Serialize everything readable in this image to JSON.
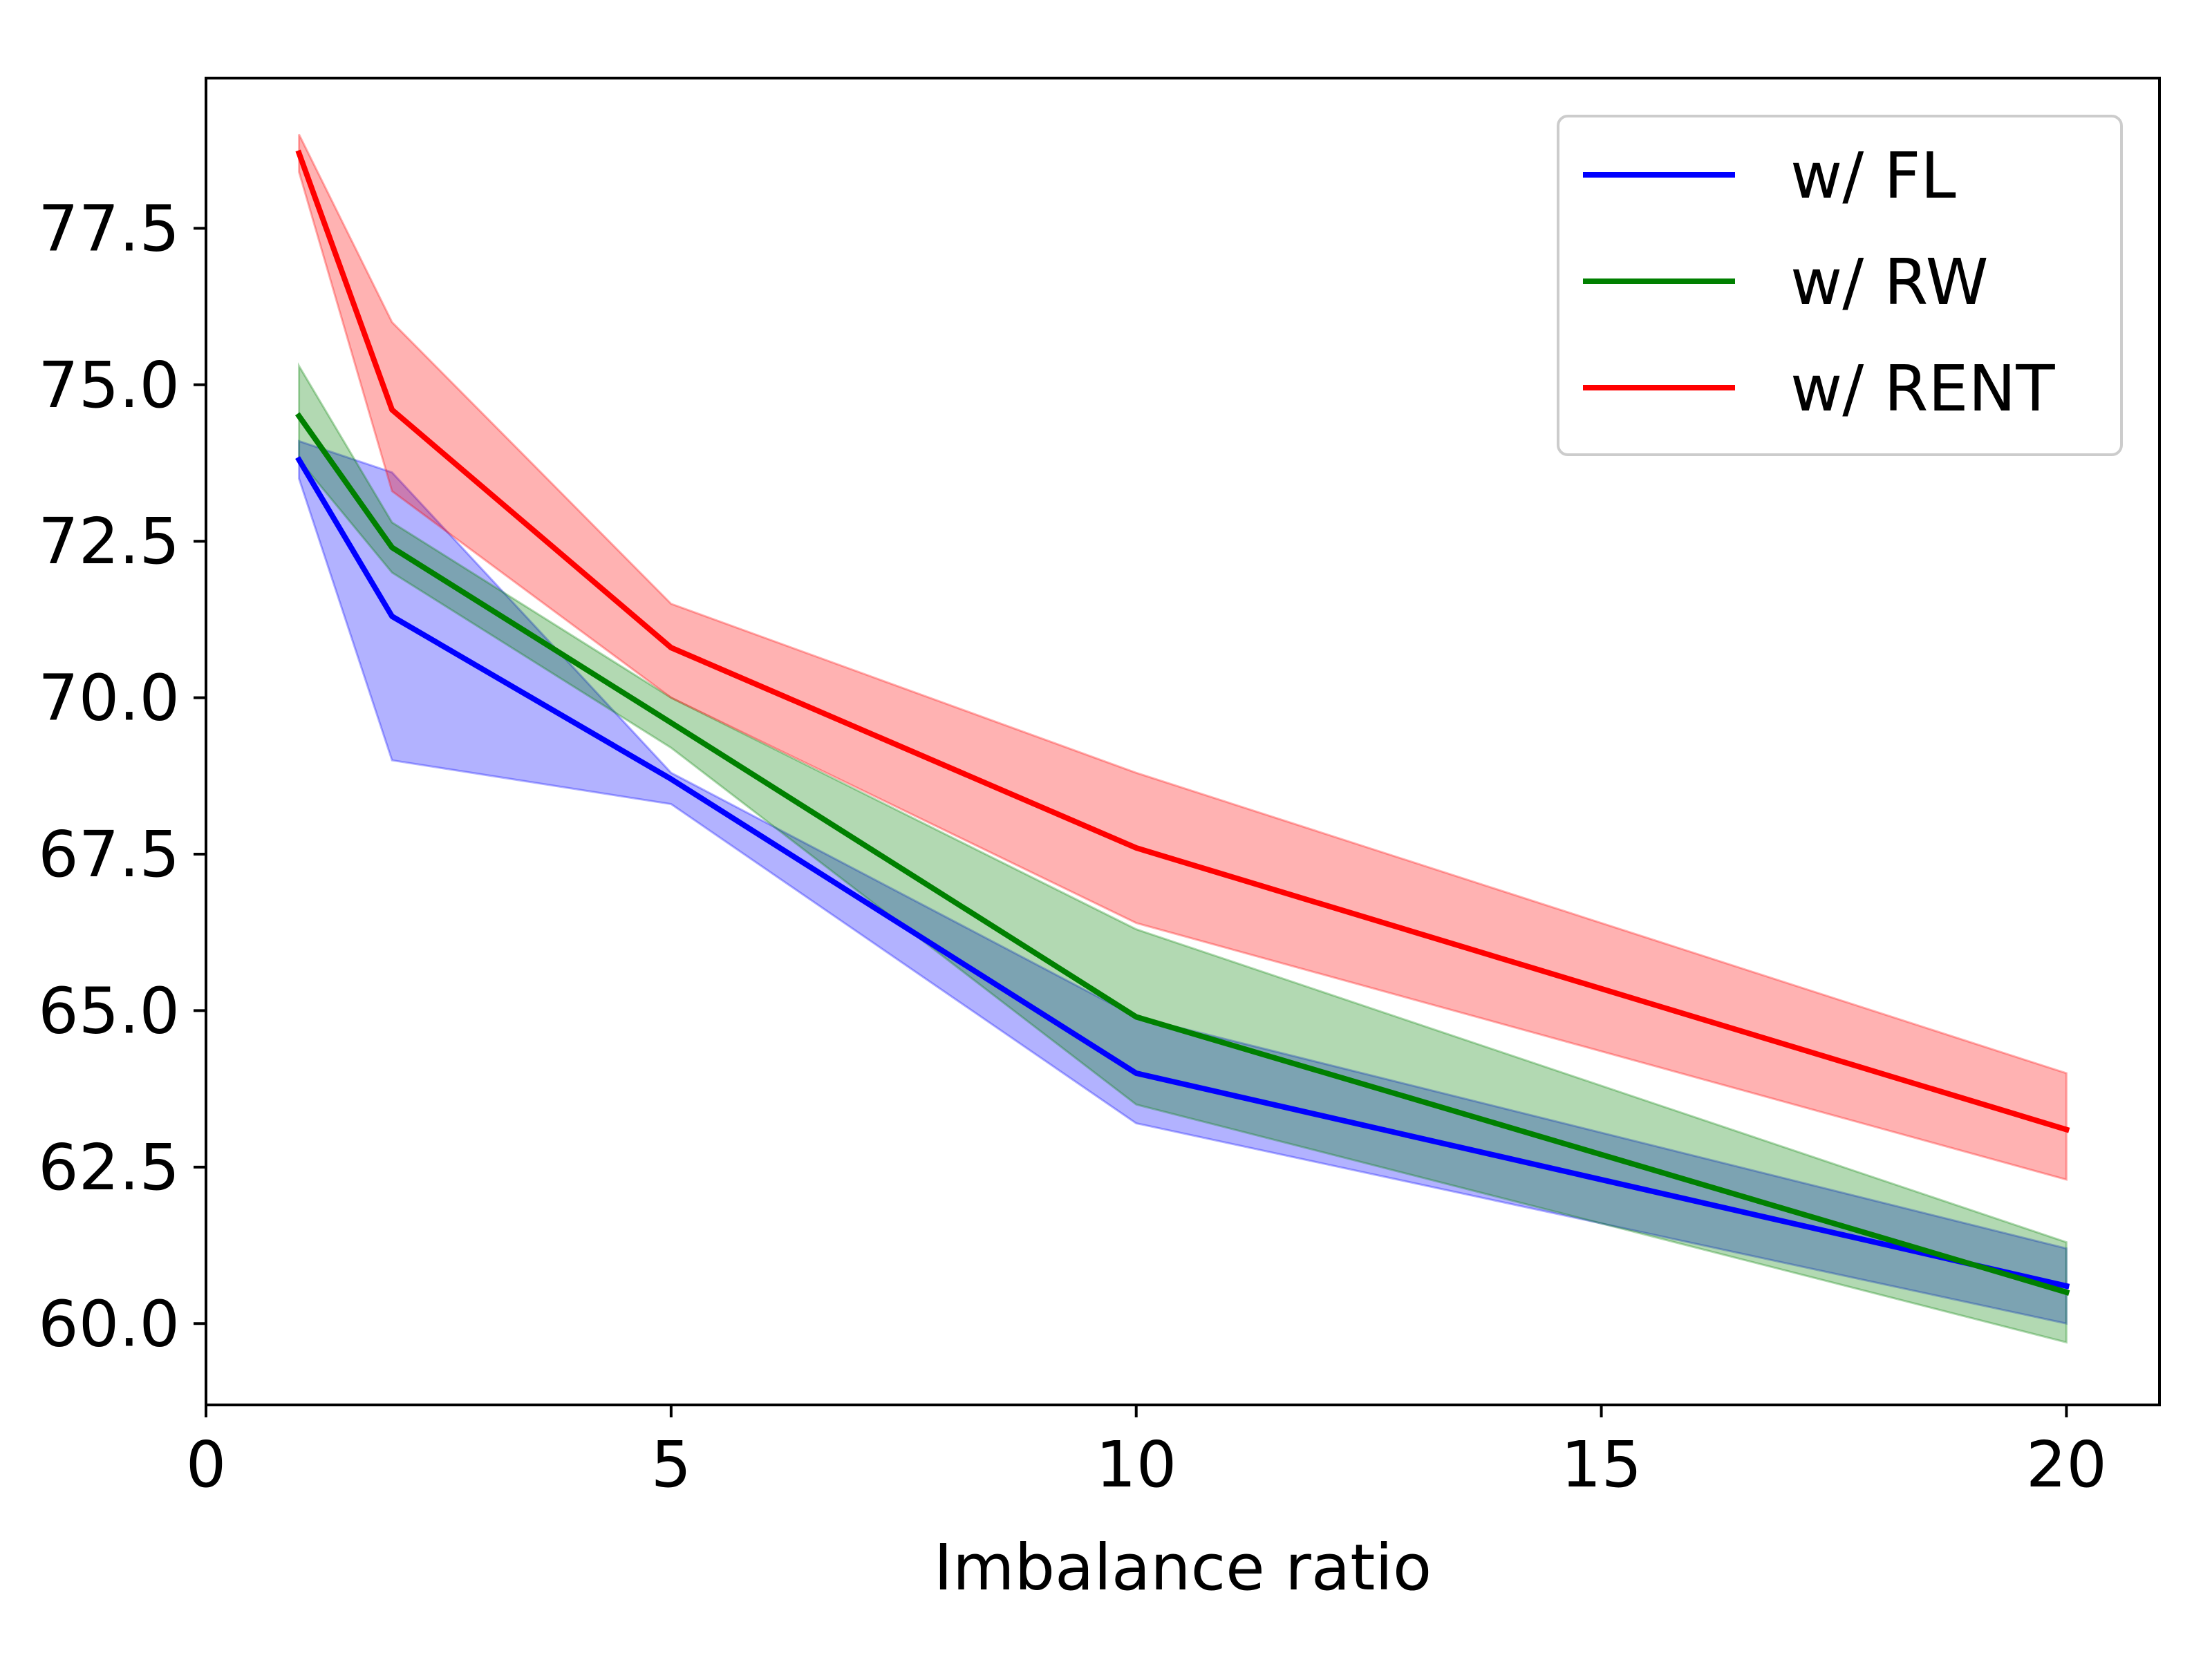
{
  "chart_data": {
    "type": "line",
    "title": "",
    "xlabel": "Imbalance ratio",
    "ylabel": "",
    "xlim": [
      0,
      21
    ],
    "ylim": [
      58.7,
      79.9
    ],
    "xticks": [
      0,
      5,
      10,
      15,
      20
    ],
    "xtick_labels": [
      "0",
      "5",
      "10",
      "15",
      "20"
    ],
    "yticks": [
      60.0,
      62.5,
      65.0,
      67.5,
      70.0,
      72.5,
      75.0,
      77.5
    ],
    "ytick_labels": [
      "60.0",
      "62.5",
      "65.0",
      "67.5",
      "70.0",
      "72.5",
      "75.0",
      "77.5"
    ],
    "grid": false,
    "legend_position": "top-right",
    "x": [
      1,
      2,
      5,
      10,
      20
    ],
    "series": [
      {
        "name": "w/ FL",
        "color": "#0000ff",
        "band_color": "#0000ff",
        "values": [
          73.8,
          71.3,
          68.7,
          64.0,
          60.6
        ],
        "lower": [
          73.5,
          69.0,
          68.3,
          63.2,
          60.0
        ],
        "upper": [
          74.1,
          73.6,
          68.8,
          64.9,
          61.2
        ]
      },
      {
        "name": "w/ RW",
        "color": "#008000",
        "band_color": "#008000",
        "values": [
          74.5,
          72.4,
          69.6,
          64.9,
          60.5
        ],
        "lower": [
          73.8,
          72.0,
          69.2,
          63.5,
          59.7
        ],
        "upper": [
          75.3,
          72.8,
          70.0,
          66.3,
          61.3
        ]
      },
      {
        "name": "w/ RENT",
        "color": "#ff0000",
        "band_color": "#ff0000",
        "values": [
          78.7,
          74.6,
          70.8,
          67.6,
          63.1
        ],
        "lower": [
          78.4,
          73.3,
          70.0,
          66.4,
          62.3
        ],
        "upper": [
          79.0,
          76.0,
          71.5,
          68.8,
          64.0
        ]
      }
    ]
  }
}
